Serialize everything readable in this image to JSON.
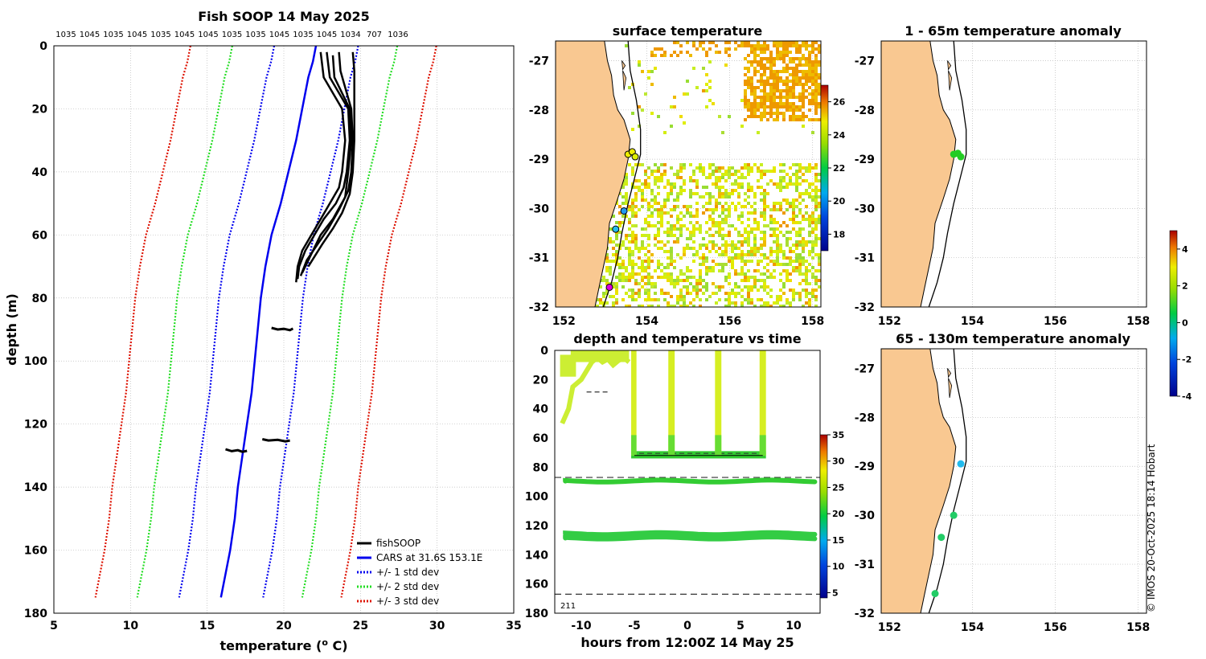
{
  "colors": {
    "black": "#000000",
    "blue": "#0000ee",
    "green": "#22dd22",
    "red": "#dd1100",
    "land": "#f9c891",
    "grid": "#bbbbbb"
  },
  "chart_data": [
    {
      "id": "profile",
      "type": "line",
      "title": "Fish SOOP 14 May 2025",
      "xlabel": "temperature (",
      "xlabel_sup": "o",
      "xlabel_tail": " C)",
      "ylabel": "depth (m)",
      "xlim": [
        5,
        35
      ],
      "ylim": [
        180,
        0
      ],
      "xticks": [
        5,
        10,
        15,
        20,
        25,
        30,
        35
      ],
      "yticks": [
        0,
        20,
        40,
        60,
        80,
        100,
        120,
        140,
        160,
        180
      ],
      "top_labels": [
        "1035",
        "1045",
        "1035",
        "1045",
        "1035",
        "1045",
        "1045",
        "1035",
        "1035",
        "1045",
        "1035",
        "1045",
        "1034",
        "707",
        "1036"
      ],
      "legend": [
        "fishSOOP",
        "CARS at 31.6S 153.1E",
        "+/- 1 std dev",
        "+/- 2 std dev",
        "+/- 3 std dev"
      ],
      "cars": {
        "depth": [
          0,
          5,
          10,
          20,
          30,
          40,
          50,
          60,
          70,
          80,
          90,
          100,
          110,
          120,
          130,
          140,
          150,
          160,
          175
        ],
        "temp": [
          22.1,
          21.9,
          21.6,
          21.2,
          20.8,
          20.3,
          19.8,
          19.2,
          18.8,
          18.5,
          18.3,
          18.1,
          17.9,
          17.6,
          17.3,
          17.0,
          16.8,
          16.5,
          15.9
        ]
      },
      "std1": [
        2.0,
        2.0,
        2.0,
        2.0,
        2.0,
        2.0,
        2.0,
        2.0,
        2.0,
        2.0,
        2.0,
        2.0,
        2.0,
        2.0,
        2.0,
        2.0,
        2.0,
        2.0,
        2.0
      ],
      "fish_profiles": [
        {
          "depth": [
            2,
            10,
            20,
            30,
            40,
            45,
            50,
            55,
            60,
            65,
            70,
            75
          ],
          "temp": [
            22.4,
            22.6,
            23.8,
            24.0,
            23.8,
            23.6,
            23.0,
            22.4,
            21.8,
            21.2,
            20.9,
            20.8
          ]
        },
        {
          "depth": [
            2,
            10,
            20,
            30,
            40,
            45,
            50,
            55,
            60,
            65,
            70,
            74
          ],
          "temp": [
            22.8,
            23.0,
            24.2,
            24.3,
            24.1,
            23.9,
            23.4,
            22.6,
            22.0,
            21.4,
            21.0,
            20.9
          ]
        },
        {
          "depth": [
            2,
            8,
            20,
            30,
            40,
            46,
            52,
            58,
            63,
            68,
            73
          ],
          "temp": [
            23.6,
            23.7,
            24.4,
            24.5,
            24.4,
            24.2,
            23.6,
            22.9,
            22.2,
            21.5,
            21.1
          ]
        },
        {
          "depth": [
            2,
            8,
            20,
            30,
            40,
            47,
            53,
            58,
            63,
            70
          ],
          "temp": [
            24.5,
            24.6,
            24.6,
            24.6,
            24.5,
            24.3,
            23.8,
            23.2,
            22.5,
            21.6
          ]
        },
        {
          "depth": [
            3,
            10,
            20,
            30,
            40,
            48,
            55,
            60,
            66,
            72
          ],
          "temp": [
            23.2,
            23.3,
            24.3,
            24.4,
            24.2,
            24.0,
            23.2,
            22.4,
            21.8,
            21.2
          ]
        }
      ],
      "fish_segments": [
        {
          "depth": [
            89.5,
            90,
            89.8,
            90.2,
            89.7
          ],
          "temp": [
            19.2,
            19.6,
            20.0,
            20.4,
            20.6
          ]
        },
        {
          "depth": [
            124.8,
            125.2,
            125.0,
            125.5,
            125.2
          ],
          "temp": [
            18.6,
            19.0,
            19.6,
            20.1,
            20.4
          ]
        },
        {
          "depth": [
            128.0,
            128.6,
            128.3,
            128.8,
            128.5
          ],
          "temp": [
            16.2,
            16.6,
            17.0,
            17.3,
            17.6
          ]
        }
      ]
    },
    {
      "id": "surface_map",
      "type": "heatmap",
      "title": "surface temperature",
      "xlim": [
        151.8,
        158.2
      ],
      "ylim": [
        -32,
        -26.6
      ],
      "xticks": [
        152,
        154,
        156,
        158
      ],
      "yticks": [
        -27,
        -28,
        -29,
        -30,
        -31,
        -32
      ],
      "colorbar": {
        "min": 17,
        "max": 27,
        "ticks": [
          18,
          20,
          22,
          24,
          26
        ]
      },
      "markers": [
        {
          "lon": 153.55,
          "lat": -28.9,
          "color": "#eeee00"
        },
        {
          "lon": 153.65,
          "lat": -28.85,
          "color": "#eeee00"
        },
        {
          "lon": 153.72,
          "lat": -28.95,
          "color": "#ddee00"
        },
        {
          "lon": 153.45,
          "lat": -30.05,
          "color": "#2299ee"
        },
        {
          "lon": 153.25,
          "lat": -30.42,
          "color": "#22bbee"
        },
        {
          "lon": 153.1,
          "lat": -31.6,
          "color": "#dd00dd"
        }
      ]
    },
    {
      "id": "anomaly_1_65",
      "type": "scatter",
      "title": "1 - 65m temperature anomaly",
      "xlim": [
        151.8,
        158.2
      ],
      "ylim": [
        -32,
        -26.6
      ],
      "xticks": [
        152,
        154,
        156,
        158
      ],
      "yticks": [
        -27,
        -28,
        -29,
        -30,
        -31,
        -32
      ],
      "markers": [
        {
          "lon": 153.55,
          "lat": -28.9,
          "color": "#22cc22"
        },
        {
          "lon": 153.65,
          "lat": -28.88,
          "color": "#22cc22"
        },
        {
          "lon": 153.72,
          "lat": -28.95,
          "color": "#22cc22"
        }
      ],
      "colorbar": {
        "min": -4,
        "max": 5,
        "ticks": [
          4,
          2,
          0,
          -2,
          -4
        ]
      }
    },
    {
      "id": "anomaly_65_130",
      "type": "scatter",
      "title": "65 - 130m temperature anomaly",
      "xlim": [
        151.8,
        158.2
      ],
      "ylim": [
        -32,
        -26.6
      ],
      "xticks": [
        152,
        154,
        156,
        158
      ],
      "yticks": [
        -27,
        -28,
        -29,
        -30,
        -31,
        -32
      ],
      "markers": [
        {
          "lon": 153.72,
          "lat": -28.95,
          "color": "#22bbee"
        },
        {
          "lon": 153.55,
          "lat": -30.0,
          "color": "#22cc66"
        },
        {
          "lon": 153.25,
          "lat": -30.45,
          "color": "#22cc66"
        },
        {
          "lon": 153.1,
          "lat": -31.6,
          "color": "#22cc66"
        }
      ]
    },
    {
      "id": "depth_time",
      "type": "scatter",
      "title": "depth and temperature vs time",
      "xlabel": "hours from 12:00Z 14 May 25",
      "xlim": [
        -12.5,
        12.5
      ],
      "ylim": [
        180,
        0
      ],
      "xticks": [
        -10,
        -5,
        0,
        5,
        10
      ],
      "yticks": [
        0,
        20,
        40,
        60,
        80,
        100,
        120,
        140,
        160,
        180
      ],
      "colorbar": {
        "min": 4,
        "max": 35,
        "ticks": [
          35,
          30,
          25,
          20,
          15,
          10,
          5
        ]
      },
      "dashed_depths": [
        87,
        167
      ],
      "corner_label": "211",
      "tracks": [
        {
          "depth": 89.5,
          "x0": -11.5,
          "x1": 12.3,
          "color": "#33cc33"
        },
        {
          "depth": 125.5,
          "x0": -11.5,
          "x1": 12.3,
          "color": "#33cc44"
        },
        {
          "depth": 128.5,
          "x0": -11.5,
          "x1": 12.3,
          "color": "#33cc44"
        }
      ],
      "early_cast": {
        "x": [
          -11.8,
          -11.5,
          -11.2,
          -10.8,
          -10.0,
          -9.0,
          -8.5,
          -8.0,
          -7.5,
          -7.0,
          -6.5,
          -6.0,
          -5.5
        ],
        "depth": [
          50,
          45,
          40,
          25,
          20,
          8,
          5,
          8,
          6,
          10,
          7,
          5,
          8
        ]
      },
      "upcasts": [
        {
          "x0": -5.3,
          "x1": -4.8
        },
        {
          "x0": -1.8,
          "x1": -1.2
        },
        {
          "x0": 2.6,
          "x1": 3.2
        },
        {
          "x0": 6.8,
          "x1": 7.4
        }
      ],
      "deep_band": {
        "x0": -5.3,
        "x1": 7.4,
        "depth": 72
      }
    }
  ],
  "footer": "© IMOS 20-Oct-2025 18:14 Hobart"
}
